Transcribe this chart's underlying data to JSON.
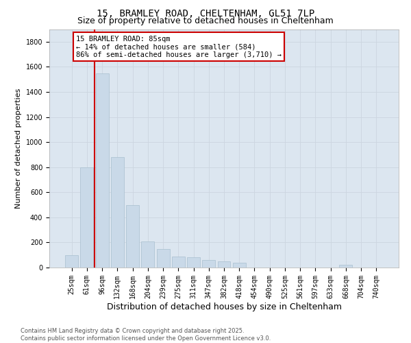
{
  "title_line1": "15, BRAMLEY ROAD, CHELTENHAM, GL51 7LP",
  "title_line2": "Size of property relative to detached houses in Cheltenham",
  "xlabel": "Distribution of detached houses by size in Cheltenham",
  "ylabel": "Number of detached properties",
  "categories": [
    "25sqm",
    "61sqm",
    "96sqm",
    "132sqm",
    "168sqm",
    "204sqm",
    "239sqm",
    "275sqm",
    "311sqm",
    "347sqm",
    "382sqm",
    "418sqm",
    "454sqm",
    "490sqm",
    "525sqm",
    "561sqm",
    "597sqm",
    "633sqm",
    "668sqm",
    "704sqm",
    "740sqm"
  ],
  "values": [
    100,
    800,
    1550,
    880,
    500,
    210,
    150,
    90,
    80,
    60,
    50,
    40,
    0,
    0,
    0,
    0,
    0,
    0,
    20,
    0,
    0
  ],
  "bar_color": "#c9d9e8",
  "bar_edge_color": "#a8bfcf",
  "vline_color": "#cc0000",
  "vline_x": 1.5,
  "annotation_text": "15 BRAMLEY ROAD: 85sqm\n← 14% of detached houses are smaller (584)\n86% of semi-detached houses are larger (3,710) →",
  "annotation_box_facecolor": "#ffffff",
  "annotation_box_edgecolor": "#cc0000",
  "ylim": [
    0,
    1900
  ],
  "yticks": [
    0,
    200,
    400,
    600,
    800,
    1000,
    1200,
    1400,
    1600,
    1800
  ],
  "grid_color": "#ccd5e0",
  "axes_bg_color": "#dce6f0",
  "footer_text": "Contains HM Land Registry data © Crown copyright and database right 2025.\nContains public sector information licensed under the Open Government Licence v3.0.",
  "title1_fontsize": 10,
  "title2_fontsize": 9,
  "ylabel_fontsize": 8,
  "xlabel_fontsize": 9,
  "tick_fontsize": 7,
  "annotation_fontsize": 7.5,
  "footer_fontsize": 6
}
